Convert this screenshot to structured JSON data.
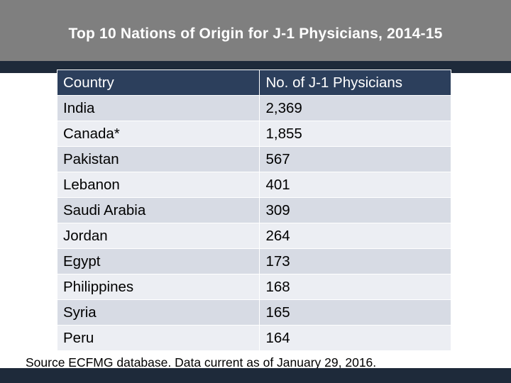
{
  "slide": {
    "title": "Top 10 Nations of Origin for J-1 Physicians, 2014-15",
    "source": "Source ECFMG database. Data current as of January 29, 2016."
  },
  "table": {
    "headers": [
      "Country",
      "No. of J-1 Physicians"
    ],
    "rows": [
      [
        "India",
        "2,369"
      ],
      [
        "Canada*",
        "1,855"
      ],
      [
        "Pakistan",
        "567"
      ],
      [
        "Lebanon",
        "401"
      ],
      [
        "Saudi Arabia",
        "309"
      ],
      [
        "Jordan",
        "264"
      ],
      [
        "Egypt",
        "173"
      ],
      [
        "Philippines",
        "168"
      ],
      [
        "Syria",
        "165"
      ],
      [
        "Peru",
        "164"
      ]
    ]
  },
  "colors": {
    "title_bar": "#7f7f7f",
    "header_row": "#2c3f5c",
    "row_band": "#d7dbe4",
    "row_plain": "#eceef3",
    "accent_band": "#1e2a3a"
  }
}
